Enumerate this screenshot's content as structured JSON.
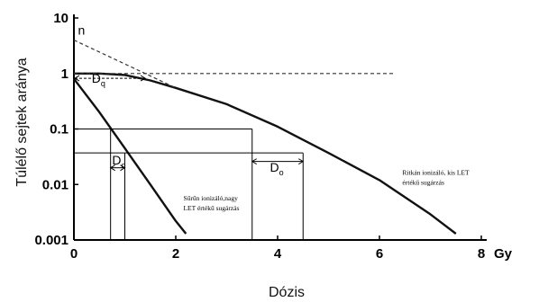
{
  "chart_data": {
    "type": "line",
    "title": "",
    "xlabel": "Dózis",
    "ylabel": "Túlélő sejtek aránya",
    "x_unit": "Gy",
    "xlim": [
      0,
      8
    ],
    "ylim": [
      0.001,
      10
    ],
    "y_scale": "log",
    "x_ticks": [
      "0",
      "2",
      "4",
      "6",
      "8"
    ],
    "y_ticks": [
      "10",
      "1",
      "0.1",
      "0.01",
      "0.001"
    ],
    "grid": false,
    "series": [
      {
        "points": [
          [
            0,
            1.0
          ],
          [
            0.5,
            1.0
          ],
          [
            1.0,
            0.94
          ],
          [
            1.5,
            0.75
          ],
          [
            2.0,
            0.55
          ],
          [
            3.0,
            0.28
          ],
          [
            4.0,
            0.11
          ],
          [
            5.0,
            0.037
          ],
          [
            6.0,
            0.012
          ],
          [
            7.0,
            0.0029
          ],
          [
            7.5,
            0.0013
          ]
        ],
        "color": "#111111"
      },
      {
        "points": [
          [
            0,
            0.8
          ],
          [
            0.5,
            0.2
          ],
          [
            1.0,
            0.045
          ],
          [
            1.5,
            0.01
          ],
          [
            2.0,
            0.0022
          ],
          [
            2.2,
            0.0013
          ]
        ],
        "color": "#111111"
      },
      {
        "points": [
          [
            0,
            4.0
          ],
          [
            1.4,
            1.0
          ],
          [
            2.0,
            0.55
          ]
        ],
        "dashed": true,
        "color": "#333333"
      },
      {
        "points": [
          [
            0,
            1.0
          ],
          [
            6.3,
            1.0
          ]
        ],
        "dashed": true,
        "color": "#333333"
      }
    ],
    "reference_lines": [
      {
        "type": "h",
        "y": 0.1,
        "x_from": 0,
        "x_to": 3.5
      },
      {
        "type": "h",
        "y": 0.037,
        "x_from": 0,
        "x_to": 4.5
      },
      {
        "type": "v",
        "x": 0.72,
        "y_from": 0.001,
        "y_to": 0.1
      },
      {
        "type": "v",
        "x": 1.0,
        "y_from": 0.001,
        "y_to": 0.037
      },
      {
        "type": "v",
        "x": 3.5,
        "y_from": 0.001,
        "y_to": 0.1
      },
      {
        "type": "v",
        "x": 4.5,
        "y_from": 0.001,
        "y_to": 0.037
      }
    ],
    "annotations": {
      "n": {
        "text": "n",
        "x": 0.08,
        "y": 5.0
      },
      "dq": {
        "text": "D",
        "sub": "q",
        "x": 0.35,
        "y": 0.68,
        "arrow_from": 0,
        "arrow_to": 1.4,
        "arrow_y": 0.82
      },
      "do_small": {
        "text": "D",
        "sub": "o",
        "x": 0.75,
        "y": 0.023,
        "arrow_from": 0.72,
        "arrow_to": 1.0,
        "arrow_y": 0.02
      },
      "do_large": {
        "text": "D",
        "sub": "o",
        "x": 3.85,
        "y": 0.017,
        "arrow_from": 3.5,
        "arrow_to": 4.5,
        "arrow_y": 0.026
      },
      "high_let": {
        "lines": [
          "Sűrűn ionizáló,nagy",
          "LET értékű sugárzás"
        ],
        "x": 2.15,
        "y": 0.0052
      },
      "low_let": {
        "lines": [
          "Ritkán ionizáló, kis LET",
          "értékű sugárzás"
        ],
        "x": 6.45,
        "y": 0.015
      }
    }
  }
}
